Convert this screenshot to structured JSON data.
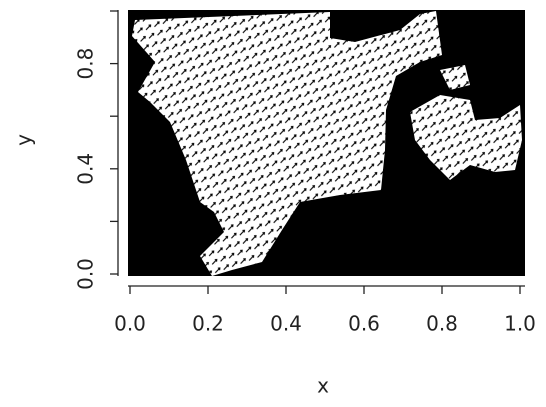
{
  "chart_data": {
    "type": "image",
    "x_label": "x",
    "y_label": "y",
    "xlim": [
      0,
      1
    ],
    "ylim": [
      0,
      1
    ],
    "xticks": [
      {
        "value": 0,
        "label": "0.0"
      },
      {
        "value": 0.2,
        "label": "0.2"
      },
      {
        "value": 0.4,
        "label": "0.4"
      },
      {
        "value": 0.6,
        "label": "0.6"
      },
      {
        "value": 0.8,
        "label": "0.8"
      },
      {
        "value": 1,
        "label": "1.0"
      }
    ],
    "yticks": [
      {
        "value": 0,
        "label": "0.0"
      },
      {
        "value": 0.2,
        "label": null
      },
      {
        "value": 0.4,
        "label": "0.4"
      },
      {
        "value": 0.6,
        "label": null
      },
      {
        "value": 0.8,
        "label": "0.8"
      },
      {
        "value": 1,
        "label": null
      }
    ]
  }
}
